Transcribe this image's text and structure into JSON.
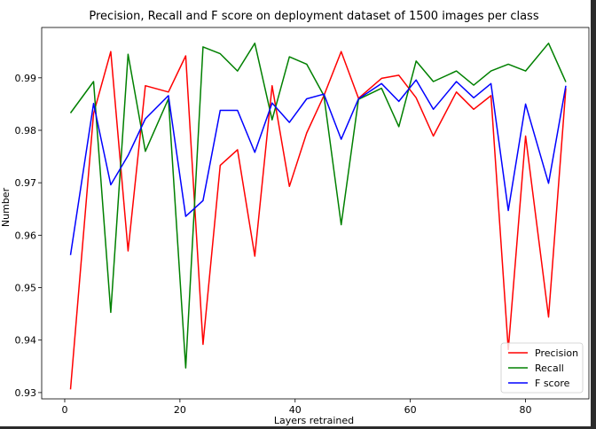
{
  "chart_data": {
    "type": "line",
    "title": "Precision, Recall and F score on deployment dataset of 1500 images per class",
    "xlabel": "Layers retrained",
    "ylabel": "Number",
    "xlim": [
      -4,
      91
    ],
    "ylim": [
      0.9288,
      0.9996
    ],
    "xticks": [
      0,
      20,
      40,
      60,
      80
    ],
    "yticks": [
      0.93,
      0.94,
      0.95,
      0.96,
      0.97,
      0.98,
      0.99
    ],
    "xtick_labels": [
      "0",
      "20",
      "40",
      "60",
      "80"
    ],
    "ytick_labels": [
      "0.93",
      "0.94",
      "0.95",
      "0.96",
      "0.97",
      "0.98",
      "0.99"
    ],
    "grid": false,
    "legend_position": "bottom-right",
    "x": [
      1,
      5,
      8,
      11,
      14,
      18,
      21,
      24,
      27,
      30,
      33,
      36,
      39,
      42,
      45,
      48,
      51,
      55,
      58,
      61,
      64,
      68,
      71,
      74,
      77,
      80,
      84,
      87
    ],
    "series": [
      {
        "name": "Precision",
        "color": "#ff0000",
        "values": [
          0.9306,
          0.9832,
          0.995,
          0.957,
          0.9885,
          0.9873,
          0.9942,
          0.9392,
          0.9733,
          0.9763,
          0.956,
          0.9885,
          0.9693,
          0.9795,
          0.9866,
          0.995,
          0.9861,
          0.9899,
          0.9905,
          0.9862,
          0.9789,
          0.9873,
          0.984,
          0.9866,
          0.9382,
          0.9789,
          0.9444,
          0.988
        ]
      },
      {
        "name": "Recall",
        "color": "#008000",
        "values": [
          0.9833,
          0.9893,
          0.9453,
          0.9945,
          0.976,
          0.986,
          0.9347,
          0.9959,
          0.9946,
          0.9913,
          0.9966,
          0.982,
          0.994,
          0.9926,
          0.9866,
          0.962,
          0.9859,
          0.988,
          0.9807,
          0.9932,
          0.9893,
          0.9913,
          0.9886,
          0.9913,
          0.9926,
          0.9913,
          0.9966,
          0.9892
        ]
      },
      {
        "name": "F score",
        "color": "#0000ff",
        "values": [
          0.9562,
          0.9851,
          0.9696,
          0.9752,
          0.9822,
          0.9866,
          0.9636,
          0.9666,
          0.9838,
          0.9838,
          0.9758,
          0.9852,
          0.9815,
          0.986,
          0.9869,
          0.9783,
          0.986,
          0.9889,
          0.9855,
          0.9896,
          0.984,
          0.9893,
          0.9862,
          0.9889,
          0.9647,
          0.985,
          0.9699,
          0.9885
        ]
      }
    ]
  }
}
